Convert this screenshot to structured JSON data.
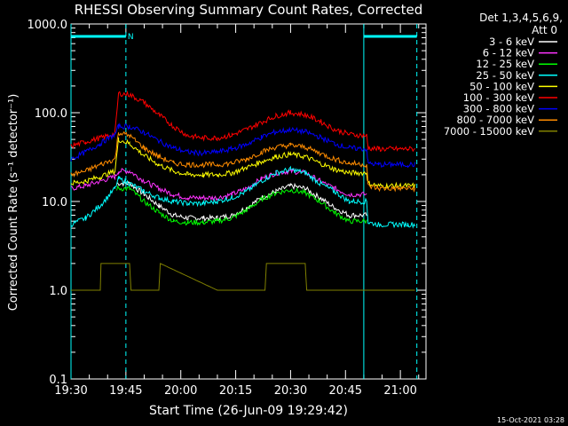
{
  "title": "RHESSI Observing Summary Count Rates, Corrected",
  "footer_date": "15-Oct-2021 03:28",
  "legend": {
    "header_line1": "Det 1,3,4,5,6,9,",
    "header_line2": "Att 0",
    "position": "right"
  },
  "chart_data": {
    "type": "line",
    "title": "RHESSI Observing Summary Count Rates, Corrected",
    "xlabel": "Start Time (26-Jun-09 19:29:42)",
    "ylabel": "Corrected Count Rate (s⁻¹ detector⁻¹)",
    "x_tick_labels": [
      "19:30",
      "19:45",
      "20:00",
      "20:15",
      "20:30",
      "20:45",
      "21:00"
    ],
    "x_ticks_minutes": [
      0,
      15,
      30,
      45,
      60,
      75,
      90
    ],
    "xlim_minutes": [
      0,
      97
    ],
    "y_scale": "log",
    "ylim": [
      0.1,
      1000
    ],
    "y_tick_labels": [
      "0.1",
      "1.0",
      "10.0",
      "100.0",
      "1000.0"
    ],
    "y_tick_values": [
      0.1,
      1,
      10,
      100,
      1000
    ],
    "grid": false,
    "series": [
      {
        "name": "3 - 6 keV",
        "color": "#ffffff",
        "legend_color": "#ffffff",
        "x": [
          12.5,
          16,
          20,
          24,
          28,
          32,
          36,
          40,
          44,
          48,
          52,
          56,
          60,
          64,
          68,
          72,
          76,
          80.8,
          81.2,
          84,
          88,
          92,
          94
        ],
        "y": [
          16,
          16,
          12,
          9,
          7,
          6.5,
          6.5,
          6.5,
          7,
          8.5,
          11,
          13,
          15,
          14,
          11,
          8.5,
          7,
          7,
          null,
          null,
          null,
          null,
          null
        ]
      },
      {
        "name": "6 - 12 keV",
        "color": "#ff33ff",
        "legend_color": "#ff33ff",
        "x": [
          0,
          4,
          8,
          12,
          13,
          16,
          20,
          24,
          28,
          32,
          36,
          40,
          44,
          48,
          52,
          56,
          60,
          64,
          68,
          72,
          76,
          80.8,
          81.2,
          84,
          88,
          92,
          94
        ],
        "y": [
          14,
          15,
          17,
          19,
          22,
          22,
          17,
          14,
          12,
          11,
          11,
          11,
          12,
          14,
          18,
          21,
          22,
          21,
          17,
          14,
          12,
          12,
          null,
          null,
          null,
          null,
          null
        ]
      },
      {
        "name": "12 - 25 keV",
        "color": "#00ff00",
        "legend_color": "#00ff00",
        "x": [
          12.5,
          16,
          20,
          24,
          28,
          32,
          36,
          40,
          44,
          48,
          52,
          56,
          60,
          64,
          68,
          72,
          76,
          80.8,
          81.2,
          84,
          88,
          92,
          94
        ],
        "y": [
          14,
          14,
          10,
          7.5,
          6,
          5.8,
          5.8,
          6,
          6.5,
          8,
          10.5,
          12.5,
          13.5,
          12.5,
          10,
          7.5,
          6,
          6,
          null,
          null,
          null,
          null,
          null
        ]
      },
      {
        "name": "25 - 50 keV",
        "color": "#00ffff",
        "legend_color": "#00ffff",
        "x": [
          0,
          4,
          8,
          12,
          13,
          16,
          20,
          24,
          28,
          32,
          36,
          40,
          44,
          48,
          52,
          56,
          60,
          64,
          68,
          72,
          76,
          80.8,
          81.2,
          84,
          88,
          92,
          94
        ],
        "y": [
          5.5,
          6.5,
          9,
          14,
          18,
          16,
          13,
          11,
          10,
          9.5,
          9.5,
          10,
          11,
          13,
          17,
          21,
          23,
          21,
          16,
          13,
          10,
          10,
          5.8,
          5.5,
          5.5,
          5.5,
          5.5
        ]
      },
      {
        "name": "50 - 100 keV",
        "color": "#ffff00",
        "legend_color": "#ffff00",
        "x": [
          0,
          4,
          8,
          12,
          13,
          16,
          20,
          24,
          28,
          32,
          36,
          40,
          44,
          48,
          52,
          56,
          60,
          64,
          68,
          72,
          76,
          80.8,
          81.2,
          84,
          88,
          92,
          94
        ],
        "y": [
          16,
          17,
          19,
          22,
          50,
          45,
          33,
          26,
          22,
          20,
          20,
          20,
          21,
          24,
          28,
          32,
          34,
          32,
          27,
          23,
          21,
          21,
          16,
          15,
          15,
          15,
          15
        ]
      },
      {
        "name": "100 - 300 keV",
        "color": "#ff0000",
        "legend_color": "#ff0000",
        "x": [
          0,
          4,
          8,
          12,
          13,
          16,
          20,
          24,
          28,
          32,
          36,
          40,
          44,
          48,
          52,
          56,
          60,
          64,
          68,
          72,
          76,
          80.8,
          81.2,
          84,
          88,
          92,
          94
        ],
        "y": [
          42,
          47,
          52,
          58,
          165,
          160,
          130,
          95,
          70,
          55,
          52,
          52,
          56,
          65,
          78,
          92,
          100,
          95,
          80,
          65,
          57,
          55,
          40,
          39,
          39,
          39,
          39
        ]
      },
      {
        "name": "300 - 800 keV",
        "color": "#0000ff",
        "legend_color": "#0000ff",
        "x": [
          0,
          4,
          8,
          12,
          13,
          16,
          20,
          24,
          28,
          32,
          36,
          40,
          44,
          48,
          52,
          56,
          60,
          64,
          68,
          72,
          76,
          80.8,
          81.2,
          84,
          88,
          92,
          94
        ],
        "y": [
          30,
          36,
          45,
          57,
          70,
          70,
          60,
          48,
          40,
          36,
          35,
          36,
          39,
          44,
          53,
          61,
          64,
          61,
          53,
          45,
          40,
          39,
          27,
          26,
          26,
          26,
          26
        ]
      },
      {
        "name": "800 - 7000 keV",
        "color": "#ff8c00",
        "legend_color": "#ff8c00",
        "x": [
          0,
          4,
          8,
          12,
          13,
          16,
          20,
          24,
          28,
          32,
          36,
          40,
          44,
          48,
          52,
          56,
          60,
          64,
          68,
          72,
          76,
          80.8,
          81.2,
          84,
          88,
          92,
          94
        ],
        "y": [
          20,
          22,
          26,
          30,
          60,
          55,
          40,
          32,
          27,
          26,
          26,
          26,
          27,
          30,
          36,
          41,
          43,
          41,
          35,
          30,
          27,
          26,
          15,
          14,
          14,
          14,
          14
        ]
      },
      {
        "name": "7000 - 15000 keV",
        "color": "#808000",
        "legend_color": "#808000",
        "x": [
          0,
          8,
          8.2,
          16,
          16.4,
          24,
          24.4,
          40,
          53,
          53.4,
          64,
          64.4,
          94
        ],
        "y": [
          1,
          1,
          2,
          2,
          1,
          1,
          2,
          1,
          1,
          2,
          2,
          1,
          1
        ]
      }
    ],
    "mode_markers": [
      {
        "label": "N",
        "x_minutes": 15.5
      }
    ],
    "vertical_markers_minutes": [
      0,
      15,
      80,
      94.5
    ],
    "saa_bars": [
      [
        0,
        15
      ],
      [
        80,
        94.5
      ]
    ]
  }
}
